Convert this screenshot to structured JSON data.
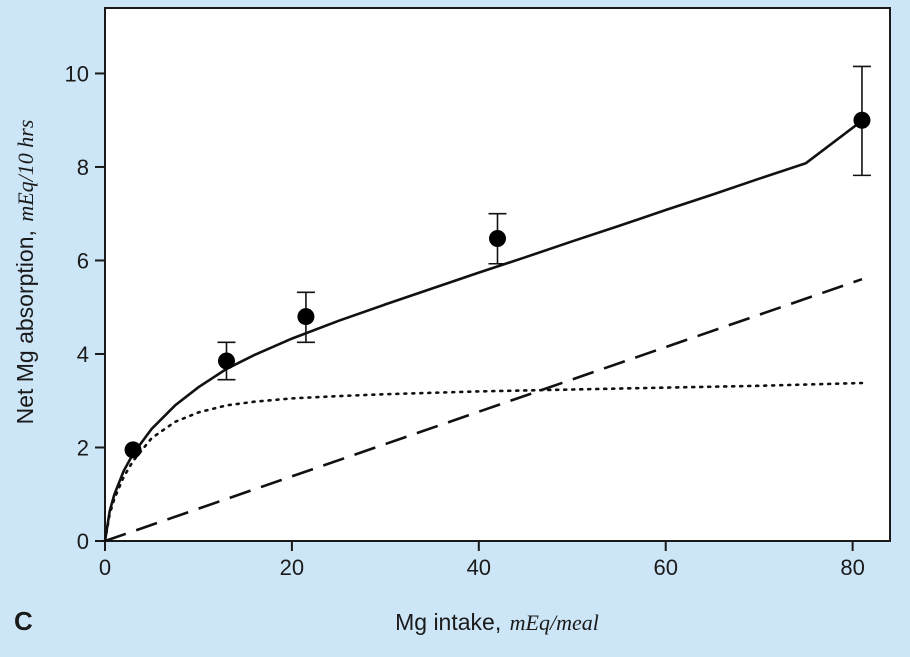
{
  "chart_data": {
    "type": "scatter",
    "panel_label": "C",
    "xlabel": "Mg intake,",
    "xlabel_unit": "mEq/meal",
    "ylabel": "Net Mg absorption,",
    "ylabel_unit": "mEq/10 hrs",
    "xlim": [
      0,
      84
    ],
    "ylim": [
      0,
      11.4
    ],
    "x_ticks": [
      0,
      20,
      40,
      60,
      80
    ],
    "y_ticks": [
      0,
      2,
      4,
      6,
      8,
      10
    ],
    "grid": false,
    "points": {
      "x": [
        3,
        13,
        21.5,
        42,
        81
      ],
      "y": [
        1.95,
        3.85,
        4.8,
        6.47,
        9.0
      ],
      "err_low": [
        null,
        3.45,
        4.25,
        5.93,
        7.82
      ],
      "err_high": [
        null,
        4.25,
        5.32,
        7.0,
        10.15
      ]
    },
    "series": [
      {
        "style": "solid",
        "x": [
          0,
          0.5,
          1,
          2,
          3,
          5,
          7.5,
          10,
          13,
          16,
          20,
          25,
          30,
          35,
          40,
          45,
          50,
          55,
          60,
          65,
          70,
          75,
          81
        ],
        "values": [
          0,
          0.64,
          0.99,
          1.5,
          1.86,
          2.4,
          2.9,
          3.29,
          3.68,
          3.98,
          4.33,
          4.71,
          5.06,
          5.4,
          5.74,
          6.07,
          6.41,
          6.74,
          7.08,
          7.41,
          7.75,
          8.08,
          8.99
        ]
      },
      {
        "style": "dotted",
        "x": [
          0,
          0.5,
          1,
          2,
          3,
          5,
          7.5,
          10,
          13,
          16,
          20,
          25,
          30,
          40,
          50,
          60,
          70,
          81
        ],
        "values": [
          0,
          0.58,
          0.9,
          1.37,
          1.71,
          2.2,
          2.55,
          2.75,
          2.9,
          2.98,
          3.05,
          3.1,
          3.14,
          3.2,
          3.24,
          3.28,
          3.32,
          3.38
        ]
      },
      {
        "style": "dashed",
        "x": [
          0,
          81
        ],
        "values": [
          0,
          5.6
        ]
      }
    ]
  }
}
